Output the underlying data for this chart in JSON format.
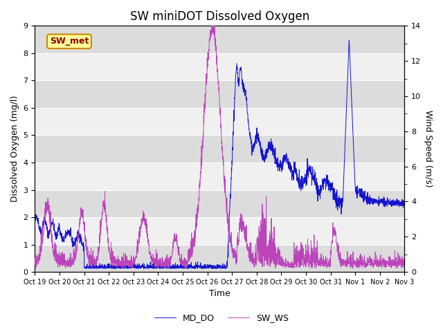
{
  "title": "SW miniDOT Dissolved Oxygen",
  "ylabel_left": "Dissolved Oxygen (mg/l)",
  "ylabel_right": "Wind Speed (m/s)",
  "xlabel": "Time",
  "ylim_left": [
    0,
    9.0
  ],
  "ylim_right": [
    0,
    14
  ],
  "yticks_left": [
    0.0,
    1.0,
    2.0,
    3.0,
    4.0,
    5.0,
    6.0,
    7.0,
    8.0,
    9.0
  ],
  "yticks_right": [
    0,
    2,
    4,
    6,
    8,
    10,
    12,
    14
  ],
  "color_do": "#1414CC",
  "color_ws": "#BB44BB",
  "legend_labels": [
    "MD_DO",
    "SW_WS"
  ],
  "annotation_text": "SW_met",
  "annotation_facecolor": "#FFFF99",
  "annotation_edgecolor": "#CC8800",
  "annotation_textcolor": "#880000",
  "band_color_dark": "#DCDCDC",
  "band_color_light": "#F0F0F0",
  "fig_facecolor": "#FFFFFF",
  "title_fontsize": 12,
  "axis_fontsize": 9,
  "tick_fontsize": 8,
  "tick_labels": [
    "Oct 19",
    "Oct 20",
    "Oct 21",
    "Oct 22",
    "Oct 23",
    "Oct 24",
    "Oct 25",
    "Oct 26",
    "Oct 27",
    "Oct 28",
    "Oct 29",
    "Oct 30",
    "Oct 31",
    "Nov 1",
    "Nov 2",
    "Nov 3"
  ]
}
